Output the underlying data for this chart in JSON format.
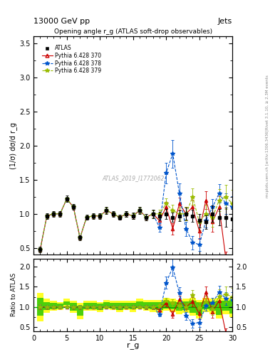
{
  "title_top": "13000 GeV pp",
  "title_right": "Jets",
  "plot_title": "Opening angle r_g (ATLAS soft-drop observables)",
  "watermark": "ATLAS_2019_I1772062",
  "right_label_top": "Rivet 3.1.10, ≥ 2.3M events",
  "right_label_bot": "mcplots.cern.ch [arXiv:1306.3436]",
  "ylabel_main": "(1/σ) dσ/d r_g",
  "ylabel_ratio": "Ratio to ATLAS",
  "xlabel": "r_g",
  "xlim": [
    0,
    30
  ],
  "ylim_main": [
    0.4,
    3.6
  ],
  "ylim_ratio": [
    0.4,
    2.2
  ],
  "x": [
    1,
    2,
    3,
    4,
    5,
    6,
    7,
    8,
    9,
    10,
    11,
    12,
    13,
    14,
    15,
    16,
    17,
    18,
    19,
    20,
    21,
    22,
    23,
    24,
    25,
    26,
    27,
    28,
    29,
    30
  ],
  "atlas_y": [
    0.48,
    0.97,
    1.0,
    1.0,
    1.22,
    1.1,
    0.65,
    0.95,
    0.97,
    0.97,
    1.05,
    1.0,
    0.95,
    1.0,
    0.97,
    1.05,
    0.95,
    1.0,
    0.97,
    1.0,
    0.95,
    0.97,
    1.0,
    0.97,
    0.9,
    0.88,
    1.0,
    0.95,
    0.95,
    0.92
  ],
  "atlas_yerr": [
    0.04,
    0.04,
    0.04,
    0.04,
    0.05,
    0.04,
    0.04,
    0.04,
    0.04,
    0.04,
    0.05,
    0.04,
    0.04,
    0.04,
    0.05,
    0.05,
    0.05,
    0.06,
    0.06,
    0.07,
    0.07,
    0.08,
    0.09,
    0.09,
    0.1,
    0.1,
    0.12,
    0.12,
    0.14,
    0.15
  ],
  "py370_y": [
    0.48,
    0.97,
    1.0,
    1.0,
    1.22,
    1.1,
    0.65,
    0.95,
    0.97,
    0.97,
    1.05,
    1.0,
    0.95,
    1.0,
    0.97,
    1.05,
    0.95,
    1.0,
    0.9,
    1.1,
    0.78,
    1.15,
    1.0,
    1.1,
    0.75,
    1.2,
    0.88,
    1.1,
    0.35,
    0.25
  ],
  "py370_yerr": [
    0.03,
    0.03,
    0.03,
    0.03,
    0.03,
    0.03,
    0.03,
    0.03,
    0.03,
    0.03,
    0.04,
    0.03,
    0.03,
    0.04,
    0.04,
    0.04,
    0.05,
    0.05,
    0.06,
    0.08,
    0.08,
    0.09,
    0.1,
    0.11,
    0.12,
    0.13,
    0.14,
    0.16,
    0.1,
    0.09
  ],
  "py378_y": [
    0.48,
    0.97,
    1.0,
    1.0,
    1.22,
    1.1,
    0.65,
    0.95,
    0.97,
    0.97,
    1.05,
    1.0,
    0.95,
    1.0,
    0.97,
    1.05,
    0.95,
    1.0,
    0.8,
    1.6,
    1.88,
    1.3,
    0.78,
    0.58,
    0.55,
    0.9,
    1.1,
    1.3,
    1.15,
    1.1
  ],
  "py378_yerr": [
    0.03,
    0.03,
    0.03,
    0.03,
    0.03,
    0.03,
    0.03,
    0.03,
    0.03,
    0.03,
    0.04,
    0.03,
    0.03,
    0.04,
    0.04,
    0.04,
    0.05,
    0.05,
    0.06,
    0.15,
    0.2,
    0.15,
    0.1,
    0.1,
    0.09,
    0.1,
    0.12,
    0.14,
    0.15,
    0.16
  ],
  "py379_y": [
    0.48,
    0.97,
    1.0,
    1.0,
    1.22,
    1.1,
    0.65,
    0.95,
    0.97,
    0.97,
    1.05,
    1.0,
    0.95,
    1.0,
    0.97,
    1.05,
    0.95,
    1.0,
    1.0,
    1.15,
    1.05,
    1.0,
    1.0,
    1.25,
    0.88,
    1.0,
    0.95,
    1.2,
    1.25,
    1.15
  ],
  "py379_yerr": [
    0.03,
    0.03,
    0.03,
    0.03,
    0.03,
    0.03,
    0.03,
    0.03,
    0.03,
    0.03,
    0.04,
    0.03,
    0.03,
    0.04,
    0.04,
    0.04,
    0.05,
    0.05,
    0.06,
    0.08,
    0.08,
    0.09,
    0.1,
    0.12,
    0.12,
    0.13,
    0.14,
    0.16,
    0.18,
    0.2
  ],
  "band_yellow_lo": [
    0.65,
    0.85,
    0.9,
    0.92,
    1.0,
    0.85,
    0.7,
    0.9,
    0.9,
    0.88,
    0.95,
    0.92,
    0.88,
    0.92,
    0.88,
    0.95,
    0.9,
    0.88,
    0.85,
    0.9,
    0.88,
    0.82,
    0.85,
    0.78,
    0.72,
    0.88,
    0.82,
    0.72,
    0.82,
    0.75
  ],
  "band_yellow_hi": [
    1.35,
    1.2,
    1.15,
    1.12,
    1.2,
    1.15,
    1.1,
    1.15,
    1.15,
    1.12,
    1.18,
    1.15,
    1.15,
    1.15,
    1.15,
    1.2,
    1.18,
    1.18,
    1.18,
    1.22,
    1.2,
    1.18,
    1.2,
    1.22,
    1.18,
    1.22,
    1.2,
    1.22,
    1.22,
    1.25
  ],
  "band_green_lo": [
    0.78,
    0.92,
    0.94,
    0.96,
    1.05,
    0.9,
    0.78,
    0.94,
    0.94,
    0.92,
    1.0,
    0.96,
    0.92,
    0.96,
    0.94,
    1.0,
    0.96,
    0.95,
    0.92,
    0.96,
    0.95,
    0.9,
    0.92,
    0.86,
    0.8,
    0.95,
    0.9,
    0.8,
    0.9,
    0.84
  ],
  "band_green_hi": [
    1.22,
    1.12,
    1.1,
    1.08,
    1.14,
    1.1,
    1.04,
    1.1,
    1.1,
    1.08,
    1.12,
    1.1,
    1.1,
    1.1,
    1.1,
    1.14,
    1.12,
    1.12,
    1.12,
    1.16,
    1.14,
    1.12,
    1.14,
    1.16,
    1.12,
    1.16,
    1.14,
    1.16,
    1.16,
    1.18
  ],
  "color_atlas": "black",
  "color_370": "#cc0000",
  "color_378": "#0055cc",
  "color_379": "#99bb00",
  "color_band_yellow": "#ffff00",
  "color_band_green": "#00bb00",
  "ratio_hline_color": "#00aa00"
}
